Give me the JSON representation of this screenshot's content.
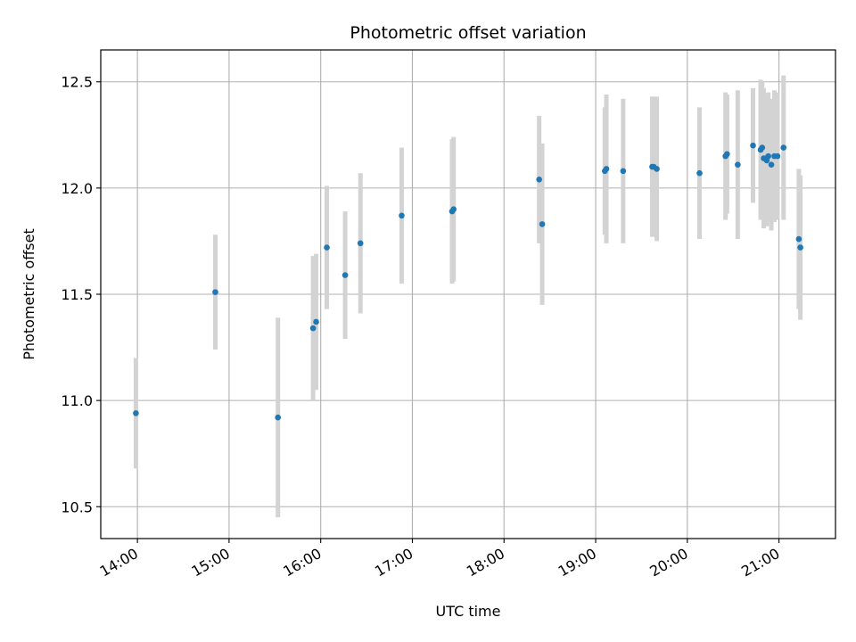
{
  "chart_data": {
    "type": "scatter",
    "title": "Photometric offset variation",
    "xlabel": "UTC time",
    "ylabel": "Photometric offset",
    "x_axis_type": "time",
    "x_tick_labels": [
      "14:00",
      "15:00",
      "16:00",
      "17:00",
      "18:00",
      "19:00",
      "20:00",
      "21:00"
    ],
    "x_range": [
      "13:36",
      "21:37"
    ],
    "y_ticks": [
      10.5,
      11.0,
      11.5,
      12.0,
      12.5
    ],
    "y_range": [
      10.35,
      12.65
    ],
    "grid": true,
    "colors": {
      "point": "#1f77b4",
      "errorbar": "#d3d3d3",
      "grid": "#b0b0b0"
    },
    "series": [
      {
        "points": [
          {
            "x": "13:59",
            "y": 10.94,
            "err": 0.26
          },
          {
            "x": "14:51",
            "y": 11.51,
            "err": 0.27
          },
          {
            "x": "15:32",
            "y": 10.92,
            "err": 0.47
          },
          {
            "x": "15:55",
            "y": 11.34,
            "err": 0.34
          },
          {
            "x": "15:57",
            "y": 11.37,
            "err": 0.32
          },
          {
            "x": "16:04",
            "y": 11.72,
            "err": 0.29
          },
          {
            "x": "16:16",
            "y": 11.59,
            "err": 0.3
          },
          {
            "x": "16:26",
            "y": 11.74,
            "err": 0.33
          },
          {
            "x": "16:53",
            "y": 11.87,
            "err": 0.32
          },
          {
            "x": "17:26",
            "y": 11.89,
            "err": 0.34
          },
          {
            "x": "17:27",
            "y": 11.9,
            "err": 0.34
          },
          {
            "x": "18:23",
            "y": 12.04,
            "err": 0.3
          },
          {
            "x": "18:25",
            "y": 11.83,
            "err": 0.38
          },
          {
            "x": "19:06",
            "y": 12.08,
            "err": 0.3
          },
          {
            "x": "19:07",
            "y": 12.09,
            "err": 0.35
          },
          {
            "x": "19:18",
            "y": 12.08,
            "err": 0.34
          },
          {
            "x": "19:37",
            "y": 12.1,
            "err": 0.33
          },
          {
            "x": "19:38",
            "y": 12.1,
            "err": 0.33
          },
          {
            "x": "19:40",
            "y": 12.09,
            "err": 0.34
          },
          {
            "x": "20:08",
            "y": 12.07,
            "err": 0.31
          },
          {
            "x": "20:25",
            "y": 12.15,
            "err": 0.3
          },
          {
            "x": "20:26",
            "y": 12.16,
            "err": 0.28
          },
          {
            "x": "20:33",
            "y": 12.11,
            "err": 0.35
          },
          {
            "x": "20:43",
            "y": 12.2,
            "err": 0.27
          },
          {
            "x": "20:48",
            "y": 12.18,
            "err": 0.33
          },
          {
            "x": "20:49",
            "y": 12.19,
            "err": 0.31
          },
          {
            "x": "20:50",
            "y": 12.14,
            "err": 0.33
          },
          {
            "x": "20:52",
            "y": 12.13,
            "err": 0.31
          },
          {
            "x": "20:53",
            "y": 12.15,
            "err": 0.3
          },
          {
            "x": "20:55",
            "y": 12.11,
            "err": 0.31
          },
          {
            "x": "20:57",
            "y": 12.15,
            "err": 0.31
          },
          {
            "x": "20:59",
            "y": 12.15,
            "err": 0.3
          },
          {
            "x": "21:03",
            "y": 12.19,
            "err": 0.34
          },
          {
            "x": "21:13",
            "y": 11.76,
            "err": 0.33
          },
          {
            "x": "21:14",
            "y": 11.72,
            "err": 0.34
          }
        ]
      }
    ]
  }
}
